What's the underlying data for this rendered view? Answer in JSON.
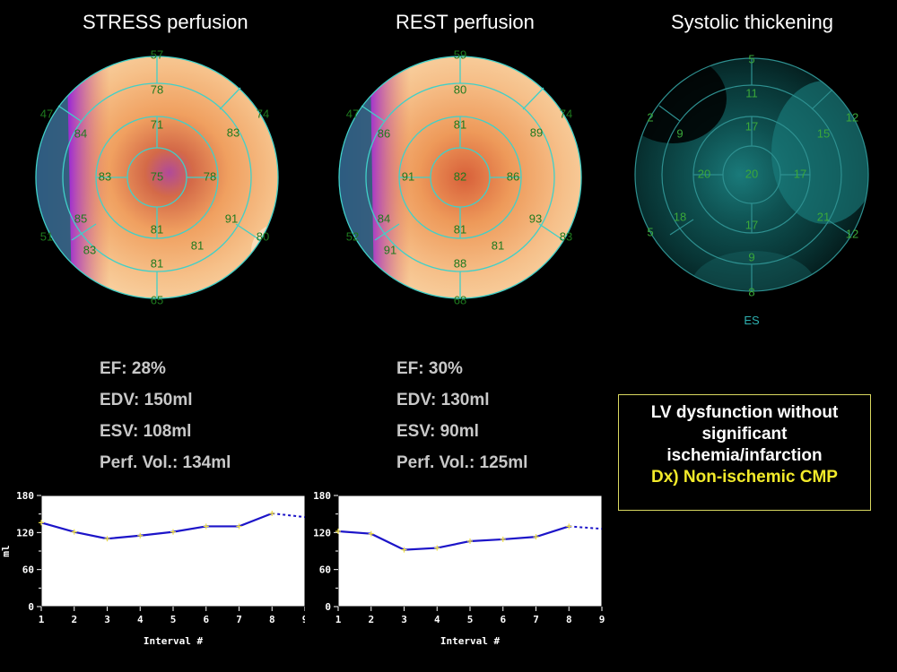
{
  "panels": {
    "stress": {
      "title": "STRESS perfusion",
      "segments": {
        "outer": [
          "57",
          "74",
          "91",
          "80",
          "65",
          "85",
          "51",
          "47",
          "84"
        ],
        "mid": [
          "78",
          "83",
          "81",
          "81",
          "83"
        ],
        "inner": [
          "71",
          "78",
          "81",
          "83",
          "75"
        ]
      }
    },
    "rest": {
      "title": "REST perfusion",
      "segments": {
        "outer": [
          "59",
          "74",
          "93",
          "83",
          "68",
          "84",
          "52",
          "47",
          "86"
        ],
        "mid": [
          "80",
          "89",
          "88",
          "81",
          "91"
        ],
        "inner": [
          "81",
          "86",
          "81",
          "91",
          "82"
        ]
      }
    },
    "thickening": {
      "title": "Systolic thickening",
      "label": "ES",
      "segments": {
        "outer": [
          "5",
          "12",
          "21",
          "12",
          "8",
          "18",
          "5",
          "2",
          "9"
        ],
        "mid": [
          "11",
          "15",
          "9",
          "17",
          "20"
        ],
        "inner": [
          "17",
          "17",
          "20",
          "20"
        ]
      }
    }
  },
  "stats": {
    "stress": {
      "ef": "EF: 28%",
      "edv": "EDV: 150ml",
      "esv": "ESV: 108ml",
      "perf": "Perf. Vol.: 134ml"
    },
    "rest": {
      "ef": "EF: 30%",
      "edv": "EDV: 130ml",
      "esv": "ESV: 90ml",
      "perf": "Perf. Vol.: 125ml"
    }
  },
  "diagnosis": {
    "line1": "LV dysfunction without",
    "line2": "significant",
    "line3": "ischemia/infarction",
    "line4": "Dx) Non-ischemic CMP"
  },
  "chart_data": [
    {
      "type": "line",
      "xlabel": "Interval #",
      "ylabel": "ml",
      "x": [
        1,
        2,
        3,
        4,
        5,
        6,
        7,
        8,
        9
      ],
      "values": [
        136,
        121,
        110,
        115,
        121,
        130,
        130,
        151,
        145
      ],
      "ylim": [
        0,
        180
      ],
      "yticks": [
        0,
        60,
        120,
        180
      ],
      "xticks": [
        1,
        2,
        3,
        4,
        5,
        6,
        7,
        8,
        9
      ],
      "line_color": "#1c14c8"
    },
    {
      "type": "line",
      "xlabel": "Interval #",
      "ylabel": "",
      "x": [
        1,
        2,
        3,
        4,
        5,
        6,
        7,
        8,
        9
      ],
      "values": [
        122,
        118,
        92,
        95,
        106,
        109,
        113,
        130,
        126
      ],
      "ylim": [
        0,
        180
      ],
      "yticks": [
        0,
        60,
        120,
        180
      ],
      "xticks": [
        1,
        2,
        3,
        4,
        5,
        6,
        7,
        8,
        9
      ],
      "line_color": "#1c14c8"
    }
  ]
}
